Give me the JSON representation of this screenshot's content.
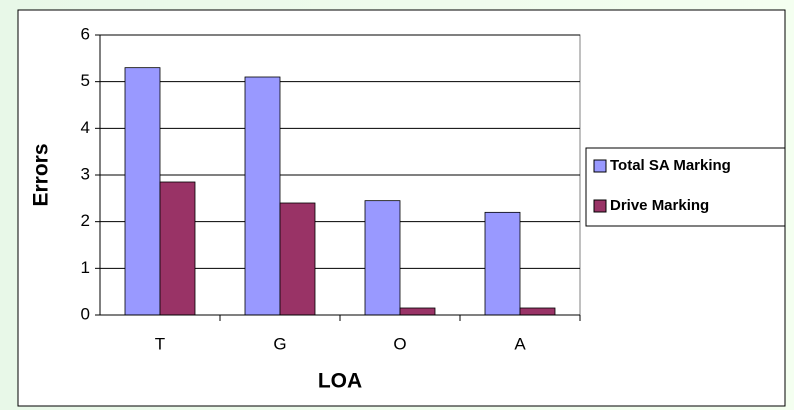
{
  "chart_data": {
    "type": "bar",
    "categories": [
      "T",
      "G",
      "O",
      "A"
    ],
    "series": [
      {
        "name": "Total SA Marking",
        "color": "#9999ff",
        "values": [
          5.3,
          5.1,
          2.45,
          2.2
        ]
      },
      {
        "name": "Drive Marking",
        "color": "#993366",
        "values": [
          2.85,
          2.4,
          0.15,
          0.15
        ]
      }
    ],
    "ylabel": "Errors",
    "xlabel": "LOA",
    "ylim": [
      0,
      6
    ],
    "yticks": [
      0,
      1,
      2,
      3,
      4,
      5,
      6
    ],
    "grid": true,
    "legend": "right"
  }
}
